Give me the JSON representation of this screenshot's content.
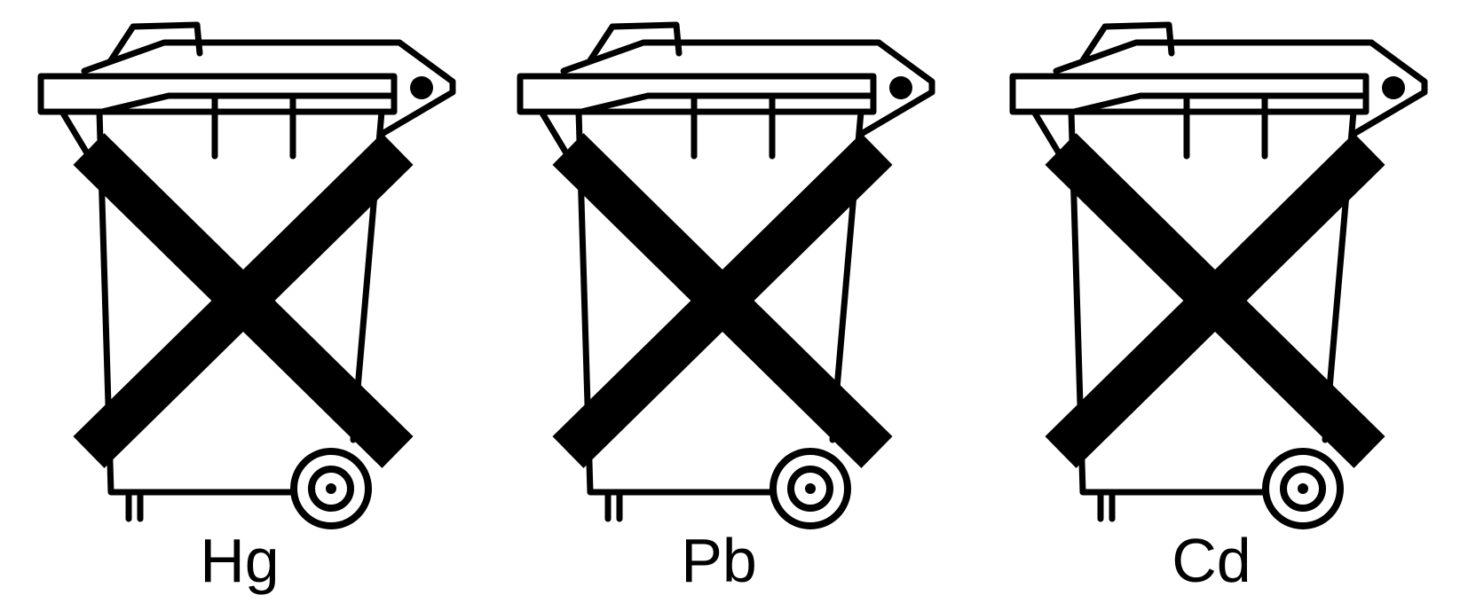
{
  "symbols": [
    {
      "label": "Hg",
      "icon": "crossed-out-wheelie-bin-icon"
    },
    {
      "label": "Pb",
      "icon": "crossed-out-wheelie-bin-icon"
    },
    {
      "label": "Cd",
      "icon": "crossed-out-wheelie-bin-icon"
    }
  ],
  "colors": {
    "ink": "#000000",
    "background": "#ffffff"
  }
}
